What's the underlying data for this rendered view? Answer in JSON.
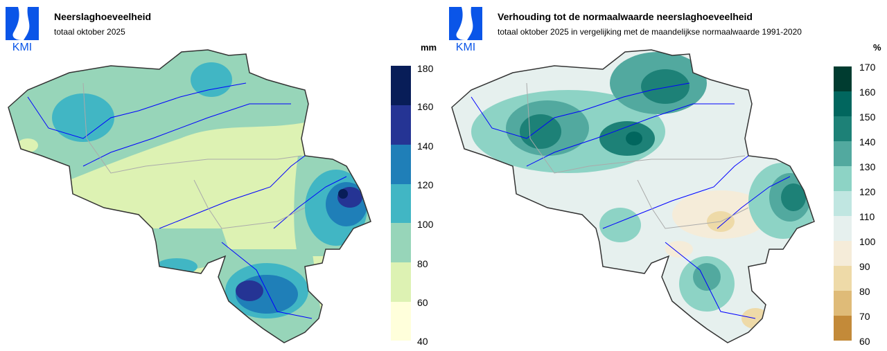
{
  "logo_text": "KMI",
  "maps": [
    {
      "title": "Neerslaghoeveelheid",
      "subtitle": "totaal oktober 2025",
      "unit": "mm",
      "legend_ticks": [
        "180",
        "160",
        "140",
        "120",
        "100",
        "80",
        "60",
        "40"
      ],
      "legend_colors": [
        "#081d58",
        "#253494",
        "#1f7fb8",
        "#41b6c4",
        "#97d5b9",
        "#ddf2b3",
        "#ffffdb"
      ]
    },
    {
      "title": "Verhouding tot de normaalwaarde neerslaghoeveelheid",
      "subtitle": "totaal oktober 2025 in vergelijking met de maandelijkse normaalwaarde 1991-2020",
      "unit": "%",
      "legend_ticks": [
        "170",
        "160",
        "150",
        "140",
        "130",
        "120",
        "110",
        "100",
        "90",
        "80",
        "70",
        "60"
      ],
      "legend_colors": [
        "#003c30",
        "#01665e",
        "#1d8177",
        "#52a99f",
        "#8dd3c5",
        "#c0e6e1",
        "#e6f0ee",
        "#f5ecd9",
        "#eedaa8",
        "#dfbb78",
        "#c38a39"
      ]
    }
  ]
}
